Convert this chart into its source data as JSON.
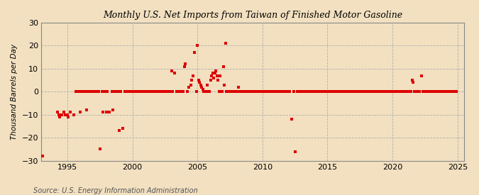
{
  "title": "Monthly U.S. Net Imports from Taiwan of Finished Motor Gasoline",
  "ylabel": "Thousand Barrels per Day",
  "source": "Source: U.S. Energy Information Administration",
  "ylim": [
    -30,
    30
  ],
  "xlim": [
    1993.0,
    2025.5
  ],
  "yticks": [
    -30,
    -20,
    -10,
    0,
    10,
    20,
    30
  ],
  "xticks": [
    1995,
    2000,
    2005,
    2010,
    2015,
    2020,
    2025
  ],
  "background_color": "#f2e0c0",
  "plot_bg_color": "#f2e0c0",
  "marker_color": "#dd0000",
  "marker_size": 3.5,
  "data_points": [
    [
      1993.08,
      -28
    ],
    [
      1994.25,
      -9
    ],
    [
      1994.33,
      -10
    ],
    [
      1994.42,
      -11
    ],
    [
      1994.58,
      -10
    ],
    [
      1994.75,
      -9
    ],
    [
      1994.83,
      -10
    ],
    [
      1995.0,
      -10
    ],
    [
      1995.08,
      -11
    ],
    [
      1995.25,
      -9
    ],
    [
      1995.5,
      -10
    ],
    [
      1995.67,
      0
    ],
    [
      1995.75,
      0
    ],
    [
      1995.92,
      0
    ],
    [
      1996.0,
      -9
    ],
    [
      1996.08,
      0
    ],
    [
      1996.25,
      0
    ],
    [
      1996.42,
      0
    ],
    [
      1996.5,
      -8
    ],
    [
      1996.67,
      0
    ],
    [
      1996.75,
      0
    ],
    [
      1996.92,
      0
    ],
    [
      1997.0,
      0
    ],
    [
      1997.08,
      0
    ],
    [
      1997.25,
      0
    ],
    [
      1997.42,
      0
    ],
    [
      1997.5,
      -25
    ],
    [
      1997.67,
      0
    ],
    [
      1997.75,
      -9
    ],
    [
      1997.92,
      0
    ],
    [
      1998.0,
      -9
    ],
    [
      1998.08,
      0
    ],
    [
      1998.25,
      -9
    ],
    [
      1998.42,
      0
    ],
    [
      1998.5,
      -8
    ],
    [
      1998.67,
      0
    ],
    [
      1998.75,
      0
    ],
    [
      1998.92,
      0
    ],
    [
      1999.0,
      -17
    ],
    [
      1999.08,
      0
    ],
    [
      1999.25,
      -16
    ],
    [
      1999.42,
      0
    ],
    [
      1999.58,
      0
    ],
    [
      1999.67,
      0
    ],
    [
      1999.75,
      0
    ],
    [
      1999.92,
      0
    ],
    [
      2000.0,
      0
    ],
    [
      2000.08,
      0
    ],
    [
      2000.25,
      0
    ],
    [
      2000.42,
      0
    ],
    [
      2000.5,
      0
    ],
    [
      2000.67,
      0
    ],
    [
      2000.75,
      0
    ],
    [
      2000.92,
      0
    ],
    [
      2001.0,
      0
    ],
    [
      2001.08,
      0
    ],
    [
      2001.25,
      0
    ],
    [
      2001.42,
      0
    ],
    [
      2001.5,
      0
    ],
    [
      2001.67,
      0
    ],
    [
      2001.75,
      0
    ],
    [
      2001.92,
      0
    ],
    [
      2002.0,
      0
    ],
    [
      2002.08,
      0
    ],
    [
      2002.25,
      0
    ],
    [
      2002.42,
      0
    ],
    [
      2002.5,
      0
    ],
    [
      2002.67,
      0
    ],
    [
      2002.75,
      0
    ],
    [
      2002.92,
      0
    ],
    [
      2003.0,
      9
    ],
    [
      2003.08,
      0
    ],
    [
      2003.25,
      8
    ],
    [
      2003.42,
      0
    ],
    [
      2003.5,
      0
    ],
    [
      2003.67,
      0
    ],
    [
      2003.75,
      0
    ],
    [
      2003.92,
      0
    ],
    [
      2004.0,
      11
    ],
    [
      2004.08,
      12
    ],
    [
      2004.25,
      0
    ],
    [
      2004.33,
      2
    ],
    [
      2004.5,
      3
    ],
    [
      2004.58,
      5
    ],
    [
      2004.67,
      7
    ],
    [
      2004.75,
      17
    ],
    [
      2004.92,
      0
    ],
    [
      2005.0,
      20
    ],
    [
      2005.08,
      5
    ],
    [
      2005.17,
      4
    ],
    [
      2005.25,
      3
    ],
    [
      2005.33,
      2
    ],
    [
      2005.42,
      1
    ],
    [
      2005.5,
      0
    ],
    [
      2005.58,
      0
    ],
    [
      2005.67,
      0
    ],
    [
      2005.75,
      3
    ],
    [
      2005.83,
      0
    ],
    [
      2005.92,
      0
    ],
    [
      2006.0,
      5
    ],
    [
      2006.08,
      7
    ],
    [
      2006.17,
      8
    ],
    [
      2006.25,
      6
    ],
    [
      2006.33,
      8
    ],
    [
      2006.42,
      9
    ],
    [
      2006.5,
      7
    ],
    [
      2006.58,
      5
    ],
    [
      2006.67,
      0
    ],
    [
      2006.75,
      7
    ],
    [
      2006.83,
      0
    ],
    [
      2006.92,
      0
    ],
    [
      2007.0,
      11
    ],
    [
      2007.08,
      3
    ],
    [
      2007.17,
      21
    ],
    [
      2007.25,
      0
    ],
    [
      2007.33,
      0
    ],
    [
      2007.42,
      0
    ],
    [
      2007.5,
      0
    ],
    [
      2007.58,
      0
    ],
    [
      2007.67,
      0
    ],
    [
      2007.75,
      0
    ],
    [
      2007.83,
      0
    ],
    [
      2007.92,
      0
    ],
    [
      2008.0,
      0
    ],
    [
      2008.08,
      0
    ],
    [
      2008.17,
      2
    ],
    [
      2008.25,
      0
    ],
    [
      2008.33,
      0
    ],
    [
      2008.42,
      0
    ],
    [
      2008.5,
      0
    ],
    [
      2008.58,
      0
    ],
    [
      2008.67,
      0
    ],
    [
      2008.75,
      0
    ],
    [
      2008.83,
      0
    ],
    [
      2008.92,
      0
    ],
    [
      2009.0,
      0
    ],
    [
      2009.08,
      0
    ],
    [
      2009.25,
      0
    ],
    [
      2009.42,
      0
    ],
    [
      2009.5,
      0
    ],
    [
      2009.67,
      0
    ],
    [
      2009.75,
      0
    ],
    [
      2009.92,
      0
    ],
    [
      2010.0,
      0
    ],
    [
      2010.08,
      0
    ],
    [
      2010.25,
      0
    ],
    [
      2010.42,
      0
    ],
    [
      2010.5,
      0
    ],
    [
      2010.67,
      0
    ],
    [
      2010.75,
      0
    ],
    [
      2010.92,
      0
    ],
    [
      2011.0,
      0
    ],
    [
      2011.08,
      0
    ],
    [
      2011.25,
      0
    ],
    [
      2011.42,
      0
    ],
    [
      2011.5,
      0
    ],
    [
      2011.67,
      0
    ],
    [
      2011.75,
      0
    ],
    [
      2011.92,
      0
    ],
    [
      2012.0,
      0
    ],
    [
      2012.08,
      0
    ],
    [
      2012.25,
      -12
    ],
    [
      2012.42,
      0
    ],
    [
      2012.5,
      -26
    ],
    [
      2012.67,
      0
    ],
    [
      2012.75,
      0
    ],
    [
      2012.92,
      0
    ],
    [
      2013.0,
      0
    ],
    [
      2013.08,
      0
    ],
    [
      2013.25,
      0
    ],
    [
      2013.42,
      0
    ],
    [
      2013.5,
      0
    ],
    [
      2013.67,
      0
    ],
    [
      2013.75,
      0
    ],
    [
      2013.92,
      0
    ],
    [
      2014.0,
      0
    ],
    [
      2014.08,
      0
    ],
    [
      2014.25,
      0
    ],
    [
      2014.42,
      0
    ],
    [
      2014.5,
      0
    ],
    [
      2014.67,
      0
    ],
    [
      2014.75,
      0
    ],
    [
      2014.92,
      0
    ],
    [
      2015.0,
      0
    ],
    [
      2015.08,
      0
    ],
    [
      2015.25,
      0
    ],
    [
      2015.42,
      0
    ],
    [
      2015.5,
      0
    ],
    [
      2015.67,
      0
    ],
    [
      2015.75,
      0
    ],
    [
      2015.92,
      0
    ],
    [
      2016.0,
      0
    ],
    [
      2016.08,
      0
    ],
    [
      2016.25,
      0
    ],
    [
      2016.42,
      0
    ],
    [
      2016.5,
      0
    ],
    [
      2016.67,
      0
    ],
    [
      2016.75,
      0
    ],
    [
      2016.92,
      0
    ],
    [
      2017.0,
      0
    ],
    [
      2017.08,
      0
    ],
    [
      2017.25,
      0
    ],
    [
      2017.42,
      0
    ],
    [
      2017.5,
      0
    ],
    [
      2017.67,
      0
    ],
    [
      2017.75,
      0
    ],
    [
      2017.92,
      0
    ],
    [
      2018.0,
      0
    ],
    [
      2018.08,
      0
    ],
    [
      2018.25,
      0
    ],
    [
      2018.42,
      0
    ],
    [
      2018.5,
      0
    ],
    [
      2018.67,
      0
    ],
    [
      2018.75,
      0
    ],
    [
      2018.92,
      0
    ],
    [
      2019.0,
      0
    ],
    [
      2019.08,
      0
    ],
    [
      2019.25,
      0
    ],
    [
      2019.42,
      0
    ],
    [
      2019.5,
      0
    ],
    [
      2019.67,
      0
    ],
    [
      2019.75,
      0
    ],
    [
      2019.92,
      0
    ],
    [
      2020.0,
      0
    ],
    [
      2020.08,
      0
    ],
    [
      2020.25,
      0
    ],
    [
      2020.42,
      0
    ],
    [
      2020.5,
      0
    ],
    [
      2020.67,
      0
    ],
    [
      2020.75,
      0
    ],
    [
      2020.92,
      0
    ],
    [
      2021.0,
      0
    ],
    [
      2021.08,
      0
    ],
    [
      2021.25,
      0
    ],
    [
      2021.42,
      0
    ],
    [
      2021.5,
      5
    ],
    [
      2021.58,
      4
    ],
    [
      2021.67,
      0
    ],
    [
      2021.75,
      0
    ],
    [
      2021.83,
      0
    ],
    [
      2021.92,
      0
    ],
    [
      2022.0,
      0
    ],
    [
      2022.08,
      0
    ],
    [
      2022.25,
      7
    ],
    [
      2022.33,
      0
    ],
    [
      2022.42,
      0
    ],
    [
      2022.5,
      0
    ],
    [
      2022.67,
      0
    ],
    [
      2022.75,
      0
    ],
    [
      2022.92,
      0
    ],
    [
      2023.0,
      0
    ],
    [
      2023.08,
      0
    ],
    [
      2023.25,
      0
    ],
    [
      2023.42,
      0
    ],
    [
      2023.5,
      0
    ],
    [
      2023.67,
      0
    ],
    [
      2023.75,
      0
    ],
    [
      2023.92,
      0
    ],
    [
      2024.0,
      0
    ],
    [
      2024.08,
      0
    ],
    [
      2024.25,
      0
    ],
    [
      2024.42,
      0
    ],
    [
      2024.5,
      0
    ],
    [
      2024.67,
      0
    ],
    [
      2024.75,
      0
    ],
    [
      2024.92,
      0
    ]
  ]
}
